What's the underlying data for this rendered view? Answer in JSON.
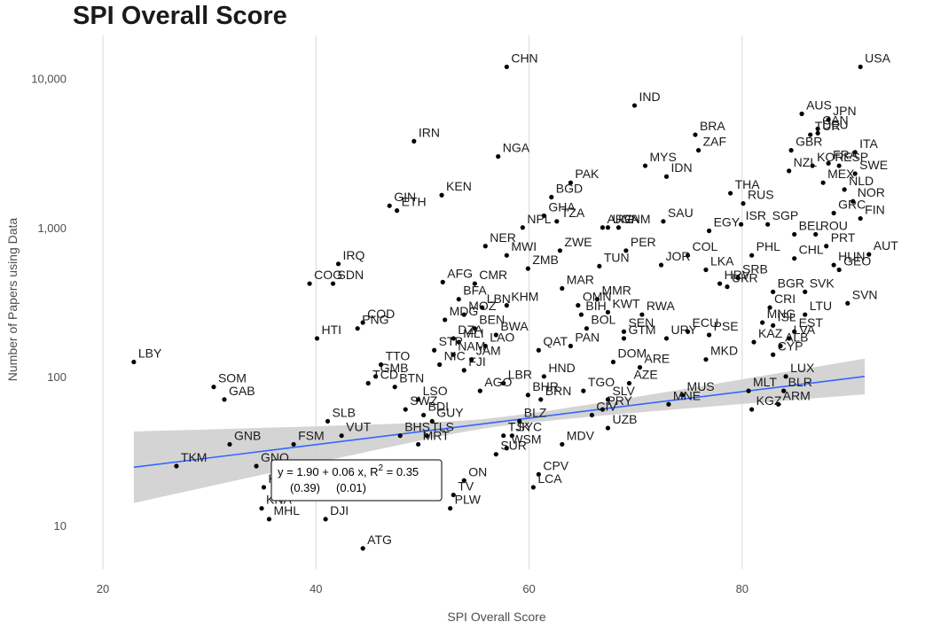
{
  "chart_data": {
    "type": "scatter",
    "title": "SPI Overall Score",
    "xlabel": "SPI Overall Score",
    "ylabel": "Number of Papers using Data",
    "x_ticks": [
      20,
      40,
      60,
      80
    ],
    "y_ticks": [
      10,
      100,
      1000,
      10000
    ],
    "y_tick_labels": [
      "10",
      "100",
      "1,000",
      "10,000"
    ],
    "y_scale": "log10",
    "xlim": [
      17,
      94
    ],
    "ylim": [
      5.1,
      19500
    ],
    "grid": "vertical major",
    "fit": {
      "method": "linear regression on log10(y) with confidence band",
      "line_color": "#3366FF",
      "band_color": "#cccccc",
      "x_range": [
        22.9,
        91.5
      ],
      "log10_y_at_start": 1.39,
      "log10_y_at_end": 2.0,
      "band_halfwidth_log10": [
        0.24,
        0.03,
        0.12
      ],
      "equation_line1": "y = 1.90 + 0.06 x, R",
      "equation_sup": "2",
      "equation_rest": " = 0.35",
      "equation_line2": "(0.39)     (0.01)"
    },
    "points": [
      {
        "label": "CHN",
        "x": 57.9,
        "y": 12000
      },
      {
        "label": "USA",
        "x": 91.1,
        "y": 12000
      },
      {
        "label": "IND",
        "x": 69.9,
        "y": 6600
      },
      {
        "label": "AUS",
        "x": 85.6,
        "y": 5800
      },
      {
        "label": "CAN",
        "x": 87.1,
        "y": 4600
      },
      {
        "label": "JPN",
        "x": 88.1,
        "y": 5300
      },
      {
        "label": "BRA",
        "x": 75.6,
        "y": 4200
      },
      {
        "label": "TUR",
        "x": 86.4,
        "y": 4200
      },
      {
        "label": "DEU",
        "x": 87.1,
        "y": 4300
      },
      {
        "label": "ZAF",
        "x": 75.9,
        "y": 3300
      },
      {
        "label": "GBR",
        "x": 84.6,
        "y": 3300
      },
      {
        "label": "KOR",
        "x": 86.6,
        "y": 2600
      },
      {
        "label": "ITA",
        "x": 90.6,
        "y": 3200
      },
      {
        "label": "MYS",
        "x": 70.9,
        "y": 2600
      },
      {
        "label": "FRA",
        "x": 88.1,
        "y": 2700
      },
      {
        "label": "IRN",
        "x": 49.2,
        "y": 3800
      },
      {
        "label": "NGA",
        "x": 57.1,
        "y": 3000
      },
      {
        "label": "ESP",
        "x": 89.1,
        "y": 2600
      },
      {
        "label": "SWE",
        "x": 90.6,
        "y": 2300
      },
      {
        "label": "IDN",
        "x": 72.9,
        "y": 2200
      },
      {
        "label": "NZL",
        "x": 84.4,
        "y": 2400
      },
      {
        "label": "MEX",
        "x": 87.6,
        "y": 2000
      },
      {
        "label": "PAK",
        "x": 63.9,
        "y": 2000
      },
      {
        "label": "THA",
        "x": 78.9,
        "y": 1700
      },
      {
        "label": "KEN",
        "x": 51.8,
        "y": 1650
      },
      {
        "label": "NLD",
        "x": 89.6,
        "y": 1800
      },
      {
        "label": "NOR",
        "x": 90.4,
        "y": 1500
      },
      {
        "label": "BGD",
        "x": 62.1,
        "y": 1600
      },
      {
        "label": "RUS",
        "x": 80.1,
        "y": 1450
      },
      {
        "label": "GIN",
        "x": 46.9,
        "y": 1400
      },
      {
        "label": "GHA",
        "x": 61.4,
        "y": 1200
      },
      {
        "label": "UGA",
        "x": 67.4,
        "y": 1000
      },
      {
        "label": "SAU",
        "x": 72.6,
        "y": 1100
      },
      {
        "label": "ISR",
        "x": 79.9,
        "y": 1050
      },
      {
        "label": "SGP",
        "x": 82.4,
        "y": 1050
      },
      {
        "label": "GRC",
        "x": 88.6,
        "y": 1250
      },
      {
        "label": "ETH",
        "x": 47.6,
        "y": 1300
      },
      {
        "label": "TZA",
        "x": 62.6,
        "y": 1100
      },
      {
        "label": "VNM",
        "x": 68.4,
        "y": 1000
      },
      {
        "label": "NPL",
        "x": 59.4,
        "y": 1000
      },
      {
        "label": "ARG",
        "x": 66.9,
        "y": 1000
      },
      {
        "label": "EGY",
        "x": 76.9,
        "y": 950
      },
      {
        "label": "BEL",
        "x": 84.9,
        "y": 900
      },
      {
        "label": "ROU",
        "x": 86.9,
        "y": 900
      },
      {
        "label": "FIN",
        "x": 91.1,
        "y": 1150
      },
      {
        "label": "ZWE",
        "x": 62.9,
        "y": 700
      },
      {
        "label": "NER",
        "x": 55.9,
        "y": 750
      },
      {
        "label": "MWI",
        "x": 57.9,
        "y": 650
      },
      {
        "label": "PRT",
        "x": 87.9,
        "y": 750
      },
      {
        "label": "AUT",
        "x": 91.9,
        "y": 660
      },
      {
        "label": "PER",
        "x": 69.1,
        "y": 700
      },
      {
        "label": "COL",
        "x": 74.9,
        "y": 650
      },
      {
        "label": "PHL",
        "x": 80.9,
        "y": 650
      },
      {
        "label": "CHL",
        "x": 84.9,
        "y": 620
      },
      {
        "label": "HUN",
        "x": 88.6,
        "y": 560
      },
      {
        "label": "GEO",
        "x": 89.1,
        "y": 520
      },
      {
        "label": "IRQ",
        "x": 42.1,
        "y": 570
      },
      {
        "label": "ZMB",
        "x": 59.9,
        "y": 530
      },
      {
        "label": "TUN",
        "x": 66.6,
        "y": 550
      },
      {
        "label": "JOR",
        "x": 72.4,
        "y": 560
      },
      {
        "label": "LKA",
        "x": 76.6,
        "y": 520
      },
      {
        "label": "SRB",
        "x": 79.6,
        "y": 460
      },
      {
        "label": "AFG",
        "x": 51.9,
        "y": 430
      },
      {
        "label": "COG",
        "x": 39.4,
        "y": 420
      },
      {
        "label": "SDN",
        "x": 41.6,
        "y": 420
      },
      {
        "label": "CMR",
        "x": 54.9,
        "y": 420
      },
      {
        "label": "KHM",
        "x": 57.9,
        "y": 300
      },
      {
        "label": "MAR",
        "x": 63.1,
        "y": 390
      },
      {
        "label": "MMR",
        "x": 66.4,
        "y": 330
      },
      {
        "label": "HRV",
        "x": 77.9,
        "y": 420
      },
      {
        "label": "UKR",
        "x": 78.6,
        "y": 400
      },
      {
        "label": "BGR",
        "x": 82.9,
        "y": 370
      },
      {
        "label": "SVK",
        "x": 85.9,
        "y": 370
      },
      {
        "label": "SVN",
        "x": 89.9,
        "y": 310
      },
      {
        "label": "BFA",
        "x": 53.4,
        "y": 330
      },
      {
        "label": "LBN",
        "x": 55.6,
        "y": 290
      },
      {
        "label": "OMN",
        "x": 64.6,
        "y": 300
      },
      {
        "label": "BIH",
        "x": 64.9,
        "y": 260
      },
      {
        "label": "KWT",
        "x": 67.4,
        "y": 270
      },
      {
        "label": "RWA",
        "x": 70.6,
        "y": 260
      },
      {
        "label": "CRI",
        "x": 82.6,
        "y": 290
      },
      {
        "label": "LTU",
        "x": 85.9,
        "y": 260
      },
      {
        "label": "MOZ",
        "x": 53.9,
        "y": 260
      },
      {
        "label": "COD",
        "x": 44.4,
        "y": 230
      },
      {
        "label": "MDG",
        "x": 52.1,
        "y": 240
      },
      {
        "label": "BEN",
        "x": 54.9,
        "y": 210
      },
      {
        "label": "BWA",
        "x": 56.9,
        "y": 190
      },
      {
        "label": "SEN",
        "x": 68.9,
        "y": 200
      },
      {
        "label": "ECU",
        "x": 74.9,
        "y": 200
      },
      {
        "label": "MNG",
        "x": 81.9,
        "y": 230
      },
      {
        "label": "ISL",
        "x": 82.9,
        "y": 220
      },
      {
        "label": "EST",
        "x": 84.9,
        "y": 200
      },
      {
        "label": "LVA",
        "x": 84.4,
        "y": 180
      },
      {
        "label": "HTI",
        "x": 40.1,
        "y": 180
      },
      {
        "label": "PNG",
        "x": 43.9,
        "y": 210
      },
      {
        "label": "DZA",
        "x": 52.9,
        "y": 180
      },
      {
        "label": "MLI",
        "x": 53.4,
        "y": 170
      },
      {
        "label": "BOL",
        "x": 65.4,
        "y": 210
      },
      {
        "label": "GTM",
        "x": 68.9,
        "y": 180
      },
      {
        "label": "URY",
        "x": 72.9,
        "y": 180
      },
      {
        "label": "PSE",
        "x": 76.9,
        "y": 190
      },
      {
        "label": "KAZ",
        "x": 81.1,
        "y": 170
      },
      {
        "label": "ALB",
        "x": 83.6,
        "y": 160
      },
      {
        "label": "CYP",
        "x": 82.9,
        "y": 140
      },
      {
        "label": "TTO",
        "x": 46.1,
        "y": 120
      },
      {
        "label": "STP",
        "x": 51.1,
        "y": 150
      },
      {
        "label": "NAM",
        "x": 52.9,
        "y": 140
      },
      {
        "label": "LAO",
        "x": 55.9,
        "y": 160
      },
      {
        "label": "PAN",
        "x": 63.9,
        "y": 160
      },
      {
        "label": "DOM",
        "x": 67.9,
        "y": 125
      },
      {
        "label": "ARE",
        "x": 70.4,
        "y": 115
      },
      {
        "label": "MKD",
        "x": 76.6,
        "y": 130
      },
      {
        "label": "NIC",
        "x": 51.6,
        "y": 120
      },
      {
        "label": "FJI",
        "x": 53.9,
        "y": 110
      },
      {
        "label": "JAM",
        "x": 54.6,
        "y": 130
      },
      {
        "label": "QAT",
        "x": 60.9,
        "y": 150
      },
      {
        "label": "HND",
        "x": 61.4,
        "y": 100
      },
      {
        "label": "MLT",
        "x": 80.6,
        "y": 80
      },
      {
        "label": "LUX",
        "x": 84.1,
        "y": 100
      },
      {
        "label": "GMB",
        "x": 45.6,
        "y": 100
      },
      {
        "label": "LBR",
        "x": 57.6,
        "y": 90
      },
      {
        "label": "TGO",
        "x": 65.1,
        "y": 80
      },
      {
        "label": "AZE",
        "x": 69.4,
        "y": 90
      },
      {
        "label": "MUS",
        "x": 74.4,
        "y": 75
      },
      {
        "label": "TCD",
        "x": 44.9,
        "y": 90
      },
      {
        "label": "BTN",
        "x": 47.4,
        "y": 85
      },
      {
        "label": "LSO",
        "x": 49.6,
        "y": 70
      },
      {
        "label": "AGO",
        "x": 55.4,
        "y": 80
      },
      {
        "label": "BHR",
        "x": 59.9,
        "y": 75
      },
      {
        "label": "BRN",
        "x": 61.1,
        "y": 70
      },
      {
        "label": "BLR",
        "x": 83.9,
        "y": 80
      },
      {
        "label": "SLV",
        "x": 67.4,
        "y": 70
      },
      {
        "label": "PRY",
        "x": 66.9,
        "y": 60
      },
      {
        "label": "MNE",
        "x": 73.1,
        "y": 65
      },
      {
        "label": "ARM",
        "x": 83.4,
        "y": 65
      },
      {
        "label": "KGZ",
        "x": 80.9,
        "y": 60
      },
      {
        "label": "SWZ",
        "x": 48.4,
        "y": 60
      },
      {
        "label": "BDI",
        "x": 50.1,
        "y": 55
      },
      {
        "label": "SLB",
        "x": 41.1,
        "y": 50
      },
      {
        "label": "GUY",
        "x": 50.9,
        "y": 50
      },
      {
        "label": "BLZ",
        "x": 59.1,
        "y": 50
      },
      {
        "label": "CIV",
        "x": 65.9,
        "y": 55
      },
      {
        "label": "UZB",
        "x": 67.4,
        "y": 45
      },
      {
        "label": "SYC",
        "x": 58.4,
        "y": 40
      },
      {
        "label": "TLS",
        "x": 50.4,
        "y": 40
      },
      {
        "label": "TJK",
        "x": 57.6,
        "y": 40
      },
      {
        "label": "GNB",
        "x": 31.9,
        "y": 35
      },
      {
        "label": "BHS",
        "x": 47.9,
        "y": 40
      },
      {
        "label": "FSM",
        "x": 37.9,
        "y": 35
      },
      {
        "label": "VUT",
        "x": 42.4,
        "y": 40
      },
      {
        "label": "WSM",
        "x": 57.9,
        "y": 33
      },
      {
        "label": "MDV",
        "x": 63.1,
        "y": 35
      },
      {
        "label": "MRT",
        "x": 49.6,
        "y": 35
      },
      {
        "label": "SUR",
        "x": 56.9,
        "y": 30
      },
      {
        "label": "TKM",
        "x": 26.9,
        "y": 25
      },
      {
        "label": "GNQ",
        "x": 34.4,
        "y": 25
      },
      {
        "label": "CPV",
        "x": 60.9,
        "y": 22
      },
      {
        "label": "KIR",
        "x": 35.1,
        "y": 18
      },
      {
        "label": "ON",
        "x": 53.9,
        "y": 20
      },
      {
        "label": "LCA",
        "x": 60.4,
        "y": 18
      },
      {
        "label": "KNA",
        "x": 34.9,
        "y": 13
      },
      {
        "label": "TV",
        "x": 52.9,
        "y": 16
      },
      {
        "label": "PLW",
        "x": 52.6,
        "y": 13
      },
      {
        "label": "MHL",
        "x": 35.6,
        "y": 11
      },
      {
        "label": "DJI",
        "x": 40.9,
        "y": 11
      },
      {
        "label": "ATG",
        "x": 44.4,
        "y": 7
      },
      {
        "label": "LBY",
        "x": 22.9,
        "y": 125
      },
      {
        "label": "SOM",
        "x": 30.4,
        "y": 85
      },
      {
        "label": "GAB",
        "x": 31.4,
        "y": 70
      }
    ]
  }
}
